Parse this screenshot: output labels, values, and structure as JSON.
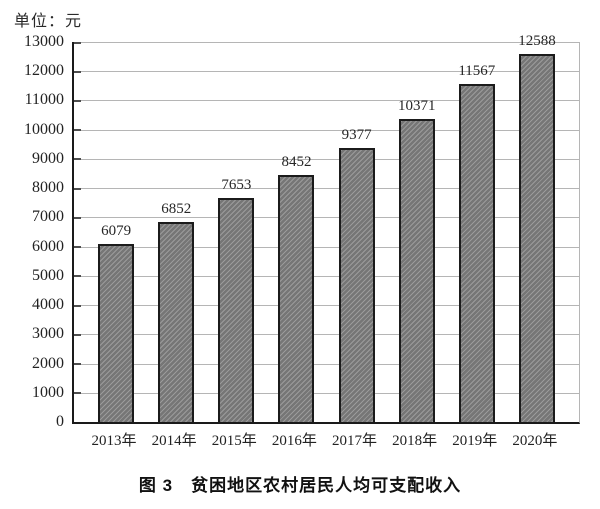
{
  "unit_label": "单位：元",
  "caption": "图 3　贫困地区农村居民人均可支配收入",
  "chart_data": {
    "type": "bar",
    "title": "图 3 贫困地区农村居民人均可支配收入",
    "unit": "单位：元",
    "categories": [
      "2013年",
      "2014年",
      "2015年",
      "2016年",
      "2017年",
      "2018年",
      "2019年",
      "2020年"
    ],
    "values": [
      6079,
      6852,
      7653,
      8452,
      9377,
      10371,
      11567,
      12588
    ],
    "xlabel": "",
    "ylabel": "",
    "ylim": [
      0,
      13000
    ],
    "yticks": [
      0,
      1000,
      2000,
      3000,
      4000,
      5000,
      6000,
      7000,
      8000,
      9000,
      10000,
      11000,
      12000,
      13000
    ],
    "grid": true,
    "legend": "none",
    "bar_fill": "#7e7e7e",
    "bar_hatch": "diagonal-forward",
    "bar_border_color": "#1b1b1b",
    "gridline_color": "#b5b5b5",
    "axis_color": "#1a1a1a",
    "background": "#ffffff"
  }
}
